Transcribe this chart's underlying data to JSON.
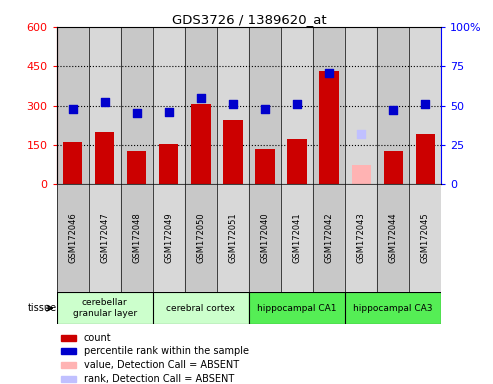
{
  "title": "GDS3726 / 1389620_at",
  "samples": [
    "GSM172046",
    "GSM172047",
    "GSM172048",
    "GSM172049",
    "GSM172050",
    "GSM172051",
    "GSM172040",
    "GSM172041",
    "GSM172042",
    "GSM172043",
    "GSM172044",
    "GSM172045"
  ],
  "count_values": [
    160,
    200,
    128,
    155,
    305,
    245,
    133,
    173,
    430,
    null,
    128,
    190
  ],
  "count_absent": [
    null,
    null,
    null,
    null,
    null,
    null,
    null,
    null,
    null,
    72,
    null,
    null
  ],
  "rank_percent": [
    48,
    52,
    45,
    46,
    55,
    51,
    48,
    51,
    71,
    null,
    47,
    51
  ],
  "rank_absent_percent": [
    null,
    null,
    null,
    null,
    null,
    null,
    null,
    null,
    null,
    32,
    null,
    null
  ],
  "tissues": [
    {
      "label": "cerebellar\ngranular layer",
      "start": 0,
      "end": 3,
      "color": "#ccffcc"
    },
    {
      "label": "cerebral cortex",
      "start": 3,
      "end": 6,
      "color": "#ccffcc"
    },
    {
      "label": "hippocampal CA1",
      "start": 6,
      "end": 9,
      "color": "#55ee55"
    },
    {
      "label": "hippocampal CA3",
      "start": 9,
      "end": 12,
      "color": "#55ee55"
    }
  ],
  "ylim_left": [
    0,
    600
  ],
  "ylim_right": [
    0,
    100
  ],
  "yticks_left": [
    0,
    150,
    300,
    450,
    600
  ],
  "yticks_right": [
    0,
    25,
    50,
    75,
    100
  ],
  "bar_color": "#cc0000",
  "bar_absent_color": "#ffb3b3",
  "rank_color": "#0000cc",
  "rank_absent_color": "#c0c0ff",
  "bar_width": 0.6,
  "rank_marker_size": 40,
  "col_colors": [
    "#c8c8c8",
    "#d8d8d8"
  ],
  "legend_items": [
    {
      "label": "count",
      "color": "#cc0000"
    },
    {
      "label": "percentile rank within the sample",
      "color": "#0000cc"
    },
    {
      "label": "value, Detection Call = ABSENT",
      "color": "#ffb3b3"
    },
    {
      "label": "rank, Detection Call = ABSENT",
      "color": "#c0c0ff"
    }
  ]
}
